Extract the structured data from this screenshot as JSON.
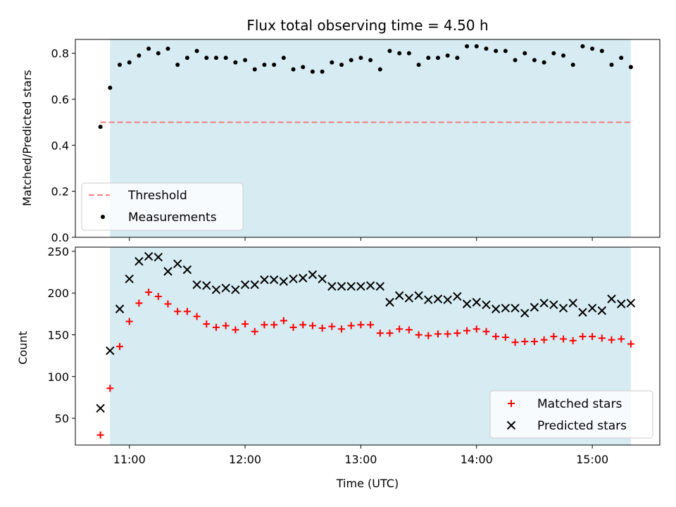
{
  "chart_data": [
    {
      "type": "scatter",
      "title": "Flux total observing time = 4.50 h",
      "xlabel": "",
      "ylabel": "Matched/Predicted stars",
      "xlim": [
        "10:32",
        "15:35"
      ],
      "ylim": [
        0.0,
        0.86
      ],
      "yticks": [
        0.0,
        0.2,
        0.4,
        0.6,
        0.8
      ],
      "ytick_labels": [
        "0.0",
        "0.2",
        "0.4",
        "0.6",
        "0.8"
      ],
      "shaded_region": {
        "start": "10:50",
        "end": "15:20",
        "color": "#add8e6"
      },
      "threshold": {
        "name": "Threshold",
        "value": 0.5,
        "start": "10:45",
        "end": "15:20",
        "color": "#f08080",
        "style": "dashed"
      },
      "legend": {
        "position": "lower-left",
        "entries": [
          "Threshold",
          "Measurements"
        ]
      },
      "series": [
        {
          "name": "Measurements",
          "marker": "dot",
          "color": "#000000",
          "x": [
            "10:45",
            "10:50",
            "10:55",
            "11:00",
            "11:05",
            "11:10",
            "11:15",
            "11:20",
            "11:25",
            "11:30",
            "11:35",
            "11:40",
            "11:45",
            "11:50",
            "11:55",
            "12:00",
            "12:05",
            "12:10",
            "12:15",
            "12:20",
            "12:25",
            "12:30",
            "12:35",
            "12:40",
            "12:45",
            "12:50",
            "12:55",
            "13:00",
            "13:05",
            "13:10",
            "13:15",
            "13:20",
            "13:25",
            "13:30",
            "13:35",
            "13:40",
            "13:45",
            "13:50",
            "13:55",
            "14:00",
            "14:05",
            "14:10",
            "14:15",
            "14:20",
            "14:25",
            "14:30",
            "14:35",
            "14:40",
            "14:45",
            "14:50",
            "14:55",
            "15:00",
            "15:05",
            "15:10",
            "15:15",
            "15:20"
          ],
          "y": [
            0.48,
            0.65,
            0.75,
            0.76,
            0.79,
            0.82,
            0.8,
            0.82,
            0.75,
            0.78,
            0.81,
            0.78,
            0.78,
            0.78,
            0.76,
            0.77,
            0.73,
            0.75,
            0.75,
            0.78,
            0.73,
            0.74,
            0.72,
            0.72,
            0.76,
            0.75,
            0.77,
            0.78,
            0.77,
            0.73,
            0.81,
            0.8,
            0.8,
            0.75,
            0.78,
            0.78,
            0.79,
            0.78,
            0.83,
            0.83,
            0.82,
            0.81,
            0.81,
            0.77,
            0.8,
            0.77,
            0.76,
            0.8,
            0.79,
            0.75,
            0.83,
            0.82,
            0.81,
            0.75,
            0.78,
            0.74
          ]
        }
      ]
    },
    {
      "type": "scatter",
      "title": "",
      "xlabel": "Time (UTC)",
      "ylabel": "Count",
      "xlim": [
        "10:32",
        "15:35"
      ],
      "ylim": [
        18,
        255
      ],
      "yticks": [
        50,
        100,
        150,
        200,
        250
      ],
      "ytick_labels": [
        "50",
        "100",
        "150",
        "200",
        "250"
      ],
      "xticks": [
        "11:00",
        "12:00",
        "13:00",
        "14:00",
        "15:00"
      ],
      "xtick_labels": [
        "11:00",
        "12:00",
        "13:00",
        "14:00",
        "15:00"
      ],
      "shaded_region": {
        "start": "10:50",
        "end": "15:20",
        "color": "#add8e6"
      },
      "legend": {
        "position": "lower-right",
        "entries": [
          "Matched stars",
          "Predicted stars"
        ]
      },
      "series": [
        {
          "name": "Matched stars",
          "marker": "plus",
          "color": "#ff0000",
          "x": [
            "10:45",
            "10:50",
            "10:55",
            "11:00",
            "11:05",
            "11:10",
            "11:15",
            "11:20",
            "11:25",
            "11:30",
            "11:35",
            "11:40",
            "11:45",
            "11:50",
            "11:55",
            "12:00",
            "12:05",
            "12:10",
            "12:15",
            "12:20",
            "12:25",
            "12:30",
            "12:35",
            "12:40",
            "12:45",
            "12:50",
            "12:55",
            "13:00",
            "13:05",
            "13:10",
            "13:15",
            "13:20",
            "13:25",
            "13:30",
            "13:35",
            "13:40",
            "13:45",
            "13:50",
            "13:55",
            "14:00",
            "14:05",
            "14:10",
            "14:15",
            "14:20",
            "14:25",
            "14:30",
            "14:35",
            "14:40",
            "14:45",
            "14:50",
            "14:55",
            "15:00",
            "15:05",
            "15:10",
            "15:15",
            "15:20"
          ],
          "y": [
            30,
            86,
            136,
            166,
            188,
            201,
            196,
            187,
            178,
            178,
            172,
            163,
            159,
            161,
            156,
            163,
            154,
            162,
            162,
            167,
            159,
            162,
            161,
            158,
            160,
            157,
            161,
            162,
            162,
            152,
            152,
            157,
            156,
            150,
            149,
            151,
            151,
            152,
            155,
            157,
            154,
            148,
            147,
            141,
            142,
            142,
            144,
            148,
            145,
            143,
            148,
            148,
            146,
            144,
            145,
            139
          ]
        },
        {
          "name": "Predicted stars",
          "marker": "x",
          "color": "#000000",
          "x": [
            "10:45",
            "10:50",
            "10:55",
            "11:00",
            "11:05",
            "11:10",
            "11:15",
            "11:20",
            "11:25",
            "11:30",
            "11:35",
            "11:40",
            "11:45",
            "11:50",
            "11:55",
            "12:00",
            "12:05",
            "12:10",
            "12:15",
            "12:20",
            "12:25",
            "12:30",
            "12:35",
            "12:40",
            "12:45",
            "12:50",
            "12:55",
            "13:00",
            "13:05",
            "13:10",
            "13:15",
            "13:20",
            "13:25",
            "13:30",
            "13:35",
            "13:40",
            "13:45",
            "13:50",
            "13:55",
            "14:00",
            "14:05",
            "14:10",
            "14:15",
            "14:20",
            "14:25",
            "14:30",
            "14:35",
            "14:40",
            "14:45",
            "14:50",
            "14:55",
            "15:00",
            "15:05",
            "15:10",
            "15:15",
            "15:20"
          ],
          "y": [
            62,
            131,
            181,
            217,
            238,
            244,
            243,
            226,
            235,
            228,
            210,
            209,
            204,
            206,
            204,
            210,
            210,
            216,
            216,
            214,
            217,
            218,
            222,
            217,
            208,
            208,
            208,
            208,
            209,
            208,
            189,
            197,
            194,
            197,
            192,
            193,
            192,
            196,
            187,
            189,
            186,
            181,
            182,
            182,
            176,
            183,
            188,
            186,
            182,
            188,
            177,
            182,
            179,
            193,
            187,
            188
          ]
        }
      ]
    }
  ]
}
